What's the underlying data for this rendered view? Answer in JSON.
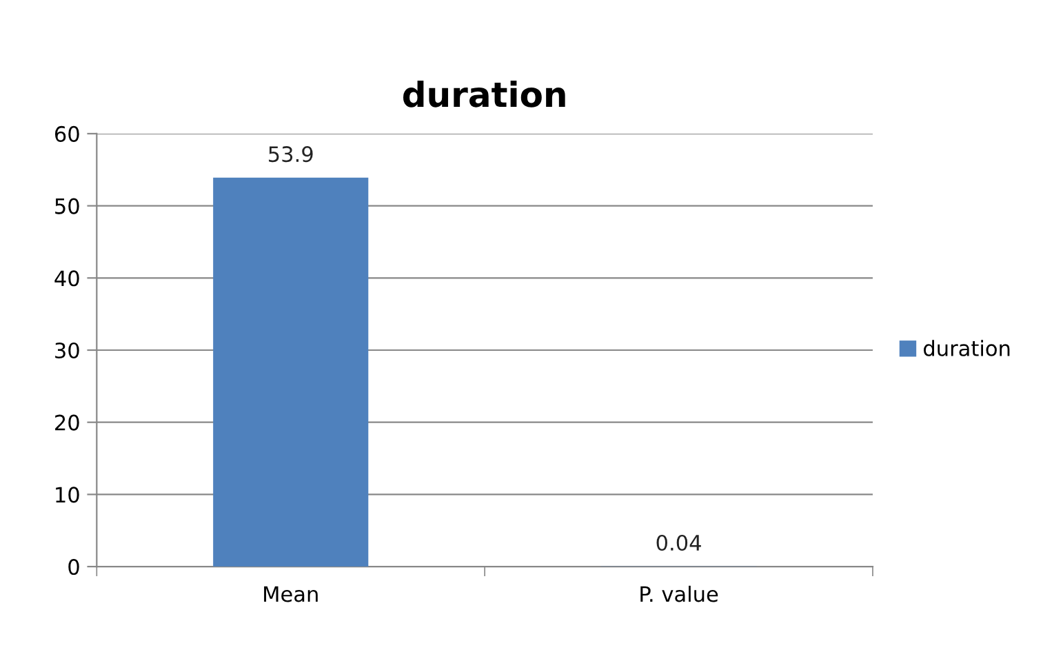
{
  "chart_data": {
    "type": "bar",
    "title": "duration",
    "categories": [
      "Mean",
      "P. value"
    ],
    "series": [
      {
        "name": "duration",
        "color": "#4f81bd",
        "values": [
          53.9,
          0.04
        ]
      }
    ],
    "ylim": [
      0,
      60
    ],
    "yticks": [
      0,
      10,
      20,
      30,
      40,
      50,
      60
    ],
    "grid": "y",
    "legend": "right",
    "data_labels": true
  }
}
